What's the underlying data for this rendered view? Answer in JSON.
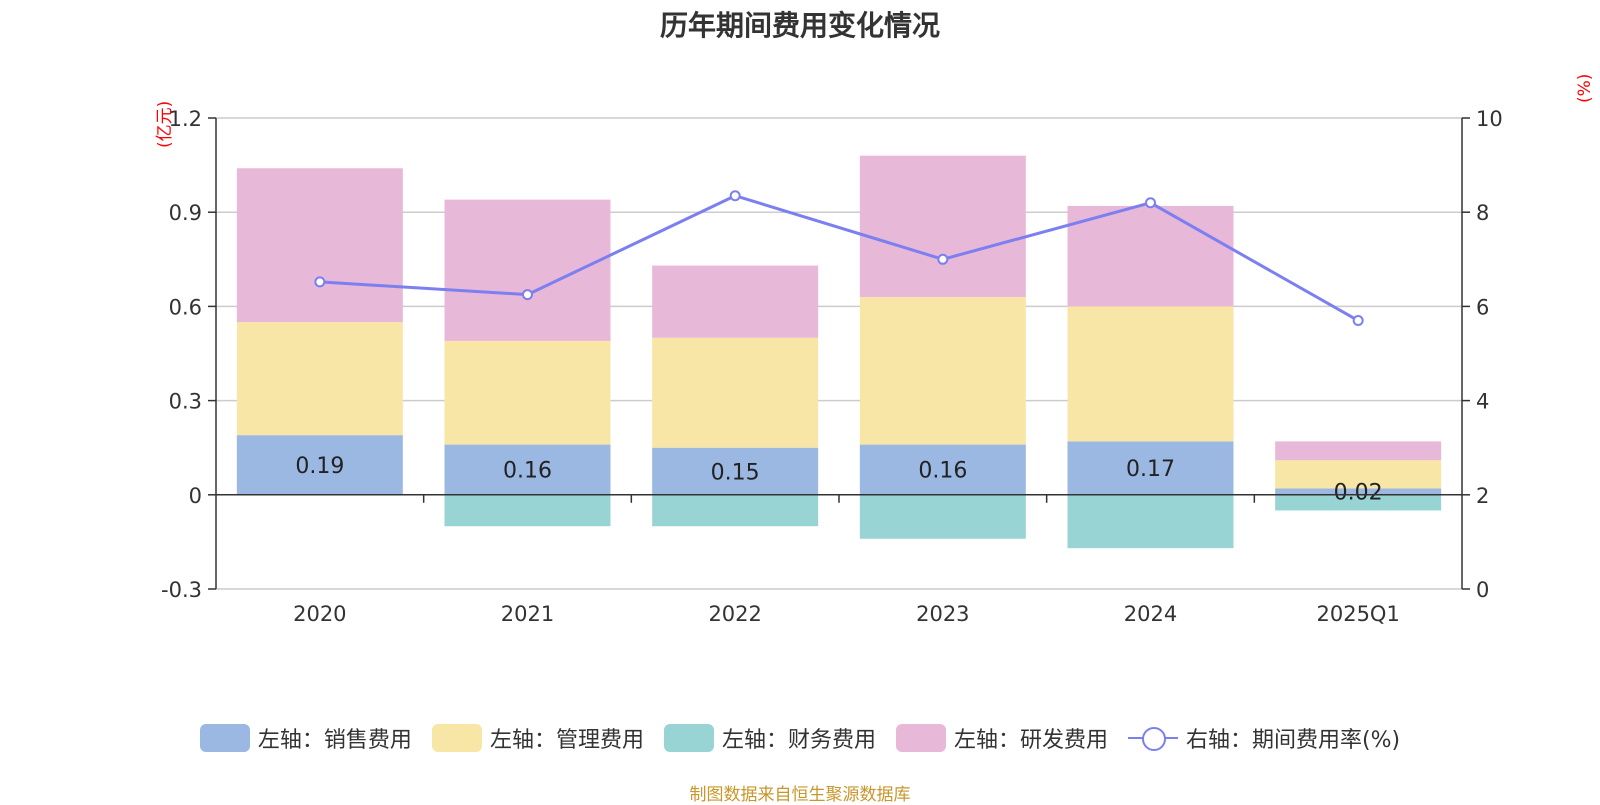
{
  "chart_data": {
    "type": "bar",
    "title": "历年期间费用变化情况",
    "categories": [
      "2020",
      "2021",
      "2022",
      "2023",
      "2024",
      "2025Q1"
    ],
    "left_axis": {
      "unit": "(亿元)",
      "ticks": [
        "1.2",
        "0.9",
        "0.6",
        "0.3",
        "0",
        "-0.3"
      ],
      "ylim": [
        -0.3,
        1.2
      ]
    },
    "right_axis": {
      "unit": "(%)",
      "ticks": [
        "10",
        "8",
        "6",
        "4",
        "2",
        "0"
      ],
      "ylim": [
        0,
        10
      ]
    },
    "series": [
      {
        "name": "左轴：销售费用",
        "color": "#9bb8e3",
        "values": [
          0.19,
          0.16,
          0.15,
          0.16,
          0.17,
          0.02
        ],
        "labels": [
          "0.19",
          "0.16",
          "0.15",
          "0.16",
          "0.17",
          "0.02"
        ]
      },
      {
        "name": "左轴：管理费用",
        "color": "#f8e6a6",
        "values": [
          0.36,
          0.33,
          0.35,
          0.47,
          0.43,
          0.09
        ]
      },
      {
        "name": "左轴：财务费用",
        "color": "#98d4d4",
        "values": [
          0.0,
          -0.1,
          -0.1,
          -0.14,
          -0.17,
          -0.05
        ]
      },
      {
        "name": "左轴：研发费用",
        "color": "#e8b8d8",
        "values": [
          0.49,
          0.45,
          0.23,
          0.45,
          0.32,
          0.06
        ]
      }
    ],
    "line_series": {
      "name": "右轴：期间费用率(%)",
      "color": "#7b7ff0",
      "values": [
        6.52,
        6.25,
        8.35,
        7.0,
        8.2,
        5.7
      ]
    }
  },
  "source_note": "制图数据来自恒生聚源数据库"
}
